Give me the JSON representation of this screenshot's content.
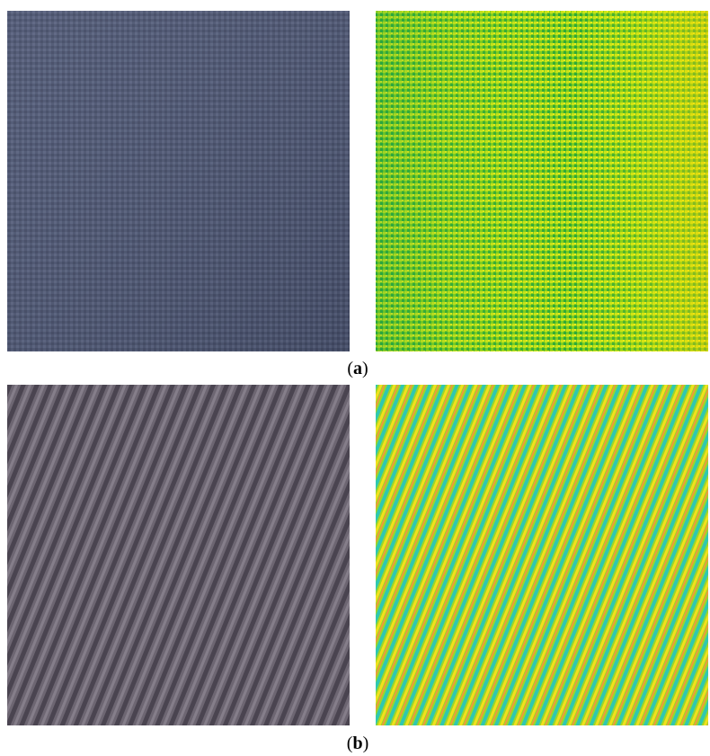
{
  "panels": [
    {
      "label_parts": [
        "(",
        "a",
        ")"
      ]
    },
    {
      "label_parts": [
        "(",
        "b",
        ")"
      ]
    }
  ]
}
